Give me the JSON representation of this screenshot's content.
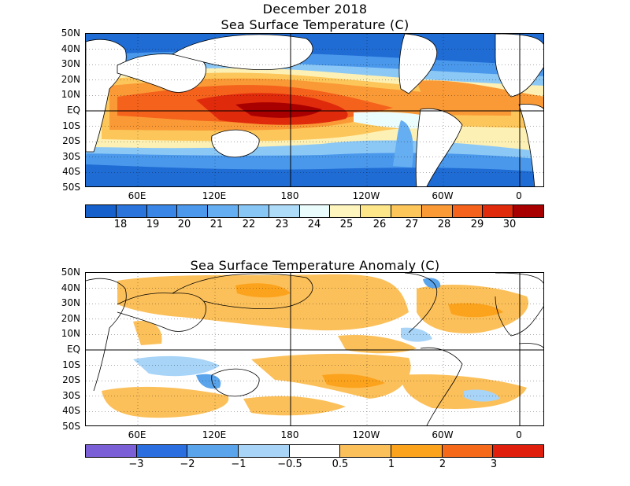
{
  "title": "December 2018",
  "sst_panel": {
    "title": "Sea Surface Temperature (C)",
    "colorbar": {
      "colors": [
        "#1660cc",
        "#2a74dc",
        "#3a86e6",
        "#4c98ec",
        "#66aef2",
        "#88c6f6",
        "#aedcf8",
        "#eafcfc",
        "#fdf4be",
        "#fde68a",
        "#fcc65a",
        "#fa9a36",
        "#f4621c",
        "#e02a0c",
        "#a80000"
      ],
      "labels": [
        "18",
        "19",
        "20",
        "21",
        "22",
        "23",
        "24",
        "25",
        "26",
        "27",
        "28",
        "29",
        "30"
      ]
    }
  },
  "anomaly_panel": {
    "title": "Sea Surface Temperature Anomaly (C)",
    "colorbar": {
      "colors": [
        "#7a5fd6",
        "#2a6ee0",
        "#5aa4ec",
        "#a8d4f8",
        "#ffffff",
        "#fcc05a",
        "#fca31e",
        "#f46a1a",
        "#e0200c"
      ],
      "labels": [
        "−3",
        "−2",
        "−1",
        "−0.5",
        "0.5",
        "1",
        "2",
        "3"
      ]
    }
  },
  "axes": {
    "lat_labels": [
      "50N",
      "40N",
      "30N",
      "20N",
      "10N",
      "EQ",
      "10S",
      "20S",
      "30S",
      "40S",
      "50S"
    ],
    "lon_labels": [
      "60E",
      "120E",
      "180",
      "120W",
      "60W",
      "0"
    ]
  }
}
